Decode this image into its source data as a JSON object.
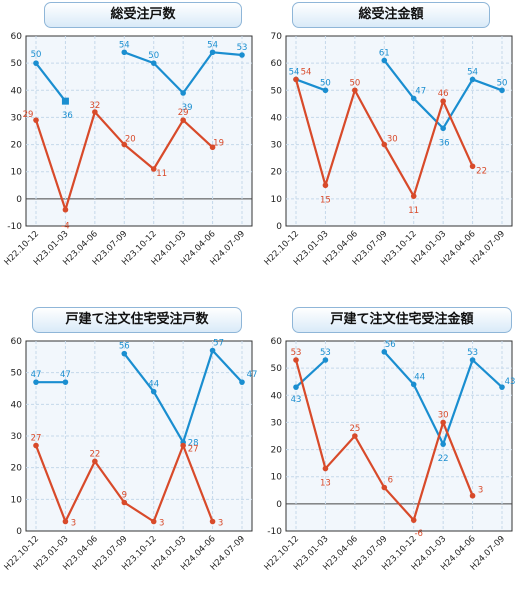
{
  "colors": {
    "blue": "#1a8ed0",
    "red": "#d84a2a",
    "grid": "#c5d8ea",
    "plot_bg": "#f2f7fc",
    "frame": "#333333"
  },
  "chart_data": [
    {
      "type": "line",
      "title": "総受注戸数",
      "categories": [
        "H22.10-12",
        "H23.01-03",
        "H23.04-06",
        "H23.07-09",
        "H23.10-12",
        "H24.01-03",
        "H24.04-06",
        "H24.07-09"
      ],
      "ylim": [
        -10,
        60
      ],
      "yticks": [
        -10,
        0,
        10,
        20,
        30,
        40,
        50,
        60
      ],
      "grid": true,
      "series": [
        {
          "color": "blue",
          "values": [
            50,
            36,
            null,
            54,
            50,
            39,
            54,
            53
          ],
          "labels": [
            "50",
            "36",
            "",
            "54",
            "50",
            "39",
            "54",
            "53"
          ],
          "square_at": 1
        },
        {
          "color": "red",
          "values": [
            29,
            -4,
            32,
            20,
            11,
            29,
            19,
            null
          ],
          "labels": [
            "29",
            "-4",
            "32",
            "20",
            "11",
            "29",
            "19",
            ""
          ]
        }
      ]
    },
    {
      "type": "line",
      "title": "総受注金額",
      "categories": [
        "H22.10-12",
        "H23.01-03",
        "H23.04-06",
        "H23.07-09",
        "H23.10-12",
        "H24.01-03",
        "H24.04-06",
        "H24.07-09"
      ],
      "ylim": [
        0,
        70
      ],
      "yticks": [
        0,
        10,
        20,
        30,
        40,
        50,
        60,
        70
      ],
      "grid": true,
      "series": [
        {
          "color": "blue",
          "values": [
            54,
            50,
            null,
            61,
            47,
            36,
            54,
            50
          ],
          "labels": [
            "54",
            "50",
            "",
            "61",
            "47",
            "36",
            "54",
            "50"
          ]
        },
        {
          "color": "red",
          "values": [
            54,
            15,
            50,
            30,
            11,
            46,
            22,
            null
          ],
          "labels": [
            "54",
            "15",
            "50",
            "30",
            "11",
            "46",
            "22",
            ""
          ]
        }
      ]
    },
    {
      "type": "line",
      "title": "戸建て注文住宅受注戸数",
      "categories": [
        "H22.10-12",
        "H23.01-03",
        "H23.04-06",
        "H23.07-09",
        "H23.10-12",
        "H24.01-03",
        "H24.04-06",
        "H24.07-09"
      ],
      "ylim": [
        0,
        60
      ],
      "yticks": [
        0,
        10,
        20,
        30,
        40,
        50,
        60
      ],
      "grid": true,
      "series": [
        {
          "color": "blue",
          "values": [
            47,
            47,
            null,
            56,
            44,
            28,
            57,
            47
          ],
          "labels": [
            "47",
            "47",
            "",
            "56",
            "44",
            "28",
            "57",
            "47"
          ]
        },
        {
          "color": "red",
          "values": [
            27,
            3,
            22,
            9,
            3,
            27,
            3,
            null
          ],
          "labels": [
            "27",
            "3",
            "22",
            "9",
            "3",
            "27",
            "3",
            ""
          ]
        }
      ]
    },
    {
      "type": "line",
      "title": "戸建て注文住宅受注金額",
      "categories": [
        "H22.10-12",
        "H23.01-03",
        "H23.04-06",
        "H23.07-09",
        "H23.10-12",
        "H24.01-03",
        "H24.04-06",
        "H24.07-09"
      ],
      "ylim": [
        -10,
        60
      ],
      "yticks": [
        -10,
        0,
        10,
        20,
        30,
        40,
        50,
        60
      ],
      "grid": true,
      "series": [
        {
          "color": "blue",
          "values": [
            43,
            53,
            null,
            56,
            44,
            22,
            53,
            43
          ],
          "labels": [
            "43",
            "53",
            "",
            "56",
            "44",
            "22",
            "53",
            "43"
          ]
        },
        {
          "color": "red",
          "values": [
            53,
            13,
            25,
            6,
            -6,
            30,
            3,
            null
          ],
          "labels": [
            "53",
            "13",
            "25",
            "6",
            "-6",
            "30",
            "3",
            ""
          ]
        }
      ]
    }
  ]
}
